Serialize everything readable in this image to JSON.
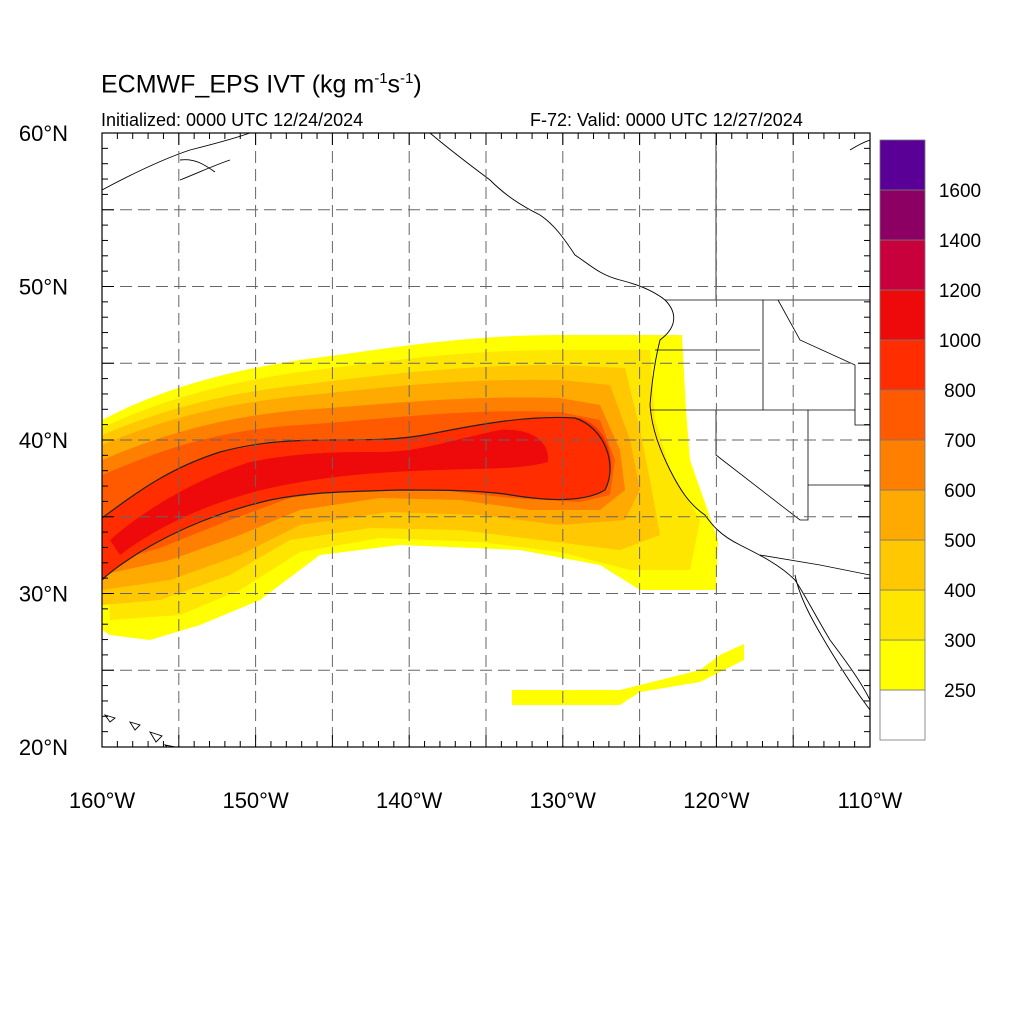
{
  "title": {
    "model": "ECMWF_EPS IVT",
    "units_open": "(kg m",
    "sup1": "-1",
    "mid": "s",
    "sup2": "-1",
    "units_close": ")"
  },
  "initialized": "Initialized: 0000 UTC 12/24/2024",
  "valid": "F-72: Valid: 0000 UTC 12/27/2024",
  "map": {
    "lon_range": [
      -160,
      -110
    ],
    "lat_range": [
      20,
      60
    ],
    "lon_ticks": [
      "160°W",
      "150°W",
      "140°W",
      "130°W",
      "120°W",
      "110°W"
    ],
    "lat_ticks": [
      "20°N",
      "30°N",
      "40°N",
      "50°N",
      "60°N"
    ],
    "grid": "dashed, every 5°"
  },
  "colorbar": {
    "levels": [
      {
        "label": "",
        "color": "#ffffff"
      },
      {
        "label": "250",
        "color": "#ffff00"
      },
      {
        "label": "300",
        "color": "#ffe600"
      },
      {
        "label": "400",
        "color": "#ffc800"
      },
      {
        "label": "500",
        "color": "#ffaa00"
      },
      {
        "label": "600",
        "color": "#ff8000"
      },
      {
        "label": "700",
        "color": "#ff5a00"
      },
      {
        "label": "800",
        "color": "#ff2d00"
      },
      {
        "label": "1000",
        "color": "#ee0a0a"
      },
      {
        "label": "1200",
        "color": "#c8003c"
      },
      {
        "label": "1400",
        "color": "#8c0064"
      },
      {
        "label": "1600",
        "color": "#5a0096"
      }
    ]
  },
  "contour_level": 800
}
